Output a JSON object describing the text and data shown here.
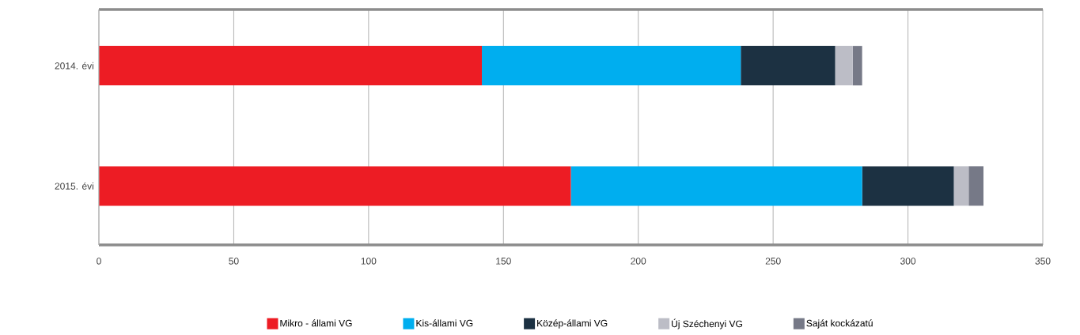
{
  "chart_data": {
    "type": "bar",
    "orientation": "horizontal",
    "stacked": true,
    "categories": [
      "2014. évi",
      "2015. évi"
    ],
    "series": [
      {
        "name": "Mikro - állami VG",
        "color": "#ed1c24",
        "values": [
          142,
          175
        ]
      },
      {
        "name": "Kis-állami VG",
        "color": "#00aeef",
        "values": [
          96,
          108
        ]
      },
      {
        "name": "Közép-állami VG",
        "color": "#1c3142",
        "values": [
          35,
          34
        ]
      },
      {
        "name": "Új Széchenyi VG",
        "color": "#bcbdc6",
        "values": [
          6.5,
          5.5
        ]
      },
      {
        "name": "Saját kockázatú",
        "color": "#767987",
        "values": [
          3.5,
          5.5
        ]
      }
    ],
    "xlim": [
      0,
      350
    ],
    "xticks": [
      0,
      50,
      100,
      150,
      200,
      250,
      300,
      350
    ],
    "grid": "x",
    "legend": "bottom"
  }
}
